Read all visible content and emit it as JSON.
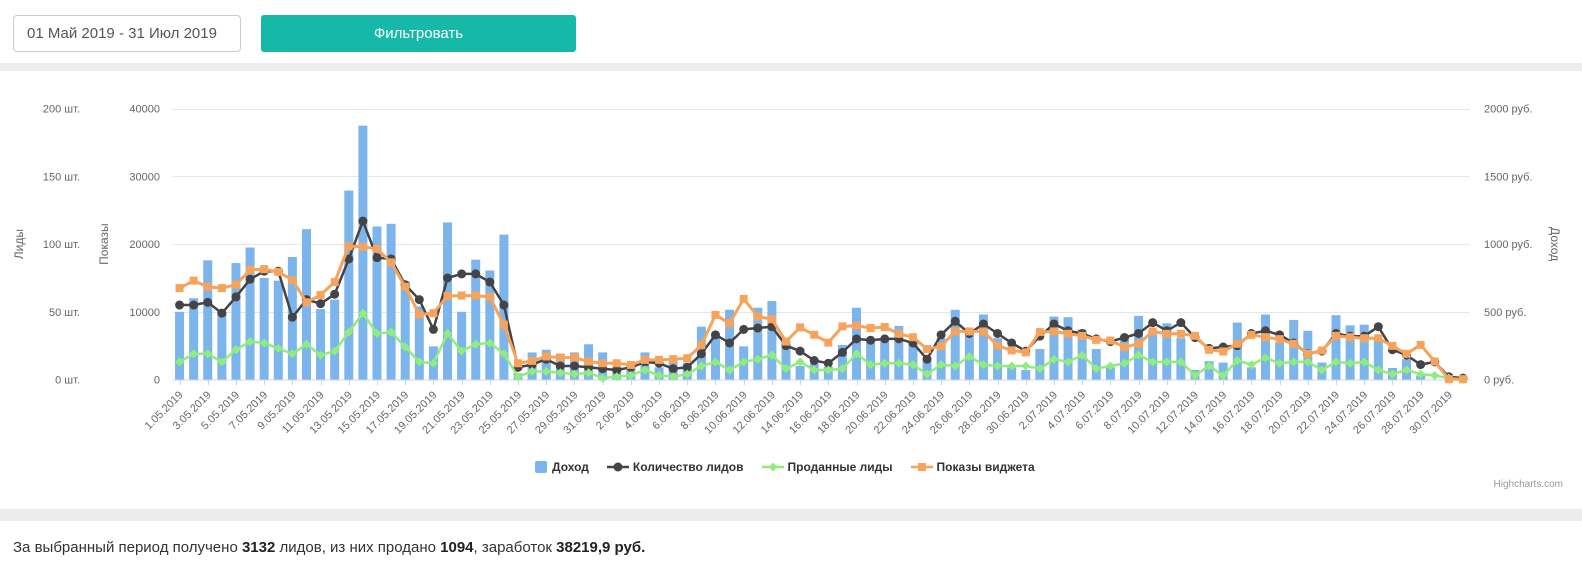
{
  "toolbar": {
    "date_range": "01 Май 2019 - 31 Июл 2019",
    "filter_button": "Фильтровать"
  },
  "chart_data": {
    "type": "mixed",
    "categories": [
      "1.05.2019",
      "2.05.2019",
      "3.05.2019",
      "4.05.2019",
      "5.05.2019",
      "6.05.2019",
      "7.05.2019",
      "8.05.2019",
      "9.05.2019",
      "10.05.2019",
      "11.05.2019",
      "12.05.2019",
      "13.05.2019",
      "14.05.2019",
      "15.05.2019",
      "16.05.2019",
      "17.05.2019",
      "18.05.2019",
      "19.05.2019",
      "20.05.2019",
      "21.05.2019",
      "22.05.2019",
      "23.05.2019",
      "24.05.2019",
      "25.05.2019",
      "26.05.2019",
      "27.05.2019",
      "28.05.2019",
      "29.05.2019",
      "30.05.2019",
      "31.05.2019",
      "1.06.2019",
      "2.06.2019",
      "3.06.2019",
      "4.06.2019",
      "5.06.2019",
      "6.06.2019",
      "7.06.2019",
      "8.06.2019",
      "9.06.2019",
      "10.06.2019",
      "11.06.2019",
      "12.06.2019",
      "13.06.2019",
      "14.06.2019",
      "15.06.2019",
      "16.06.2019",
      "17.06.2019",
      "18.06.2019",
      "19.06.2019",
      "20.06.2019",
      "21.06.2019",
      "22.06.2019",
      "23.06.2019",
      "24.06.2019",
      "25.06.2019",
      "26.06.2019",
      "27.06.2019",
      "28.06.2019",
      "29.06.2019",
      "30.06.2019",
      "1.07.2019",
      "2.07.2019",
      "3.07.2019",
      "4.07.2019",
      "5.07.2019",
      "6.07.2019",
      "7.07.2019",
      "8.07.2019",
      "9.07.2019",
      "10.07.2019",
      "11.07.2019",
      "12.07.2019",
      "13.07.2019",
      "14.07.2019",
      "15.07.2019",
      "16.07.2019",
      "17.07.2019",
      "18.07.2019",
      "19.07.2019",
      "20.07.2019",
      "21.07.2019",
      "22.07.2019",
      "23.07.2019",
      "24.07.2019",
      "25.07.2019",
      "26.07.2019",
      "27.07.2019",
      "28.07.2019",
      "29.07.2019",
      "30.07.2019",
      "31.07.2019"
    ],
    "axes": {
      "leads": {
        "title": "Лиды",
        "tick_labels": [
          "0 шт.",
          "50 шт.",
          "100 шт.",
          "150 шт.",
          "200 шт."
        ],
        "max": 200
      },
      "shows": {
        "title": "Показы",
        "tick_labels": [
          "0",
          "10000",
          "20000",
          "30000",
          "40000"
        ],
        "max": 40000
      },
      "income": {
        "title": "Доход",
        "tick_labels": [
          "0 руб.",
          "500 руб.",
          "1000 руб.",
          "1500 руб.",
          "2000 руб."
        ],
        "max": 2000
      }
    },
    "series": [
      {
        "name": "Доход",
        "type": "column",
        "marker": "square",
        "color": "#7cb5ec",
        "axis": "income",
        "values": [
          500,
          600,
          880,
          500,
          860,
          975,
          750,
          730,
          905,
          1110,
          520,
          590,
          1395,
          1875,
          1130,
          1150,
          725,
          540,
          245,
          1160,
          500,
          885,
          805,
          1070,
          45,
          200,
          220,
          190,
          200,
          260,
          200,
          95,
          85,
          200,
          90,
          135,
          125,
          390,
          315,
          515,
          245,
          530,
          580,
          285,
          100,
          120,
          95,
          255,
          530,
          300,
          300,
          395,
          265,
          135,
          305,
          515,
          325,
          480,
          305,
          90,
          70,
          225,
          465,
          460,
          370,
          225,
          90,
          315,
          470,
          365,
          415,
          305,
          70,
          135,
          125,
          420,
          90,
          480,
          270,
          440,
          360,
          125,
          475,
          400,
          405,
          300,
          85,
          150,
          30,
          0,
          0,
          0
        ]
      },
      {
        "name": "Количество лидов",
        "type": "line",
        "marker": "circle",
        "color": "#434348",
        "axis": "leads",
        "values": [
          55,
          55,
          57,
          49,
          61,
          74,
          80,
          80,
          46,
          59,
          56,
          63,
          89,
          117,
          90,
          89,
          70,
          59,
          37,
          75,
          78,
          78,
          72,
          55,
          9,
          11,
          15,
          10,
          10,
          9,
          8,
          7,
          9,
          13,
          12,
          8,
          9,
          19,
          33,
          27,
          37,
          38,
          39,
          25,
          21,
          14,
          12,
          20,
          30,
          29,
          30,
          30,
          27,
          15,
          33,
          43,
          34,
          41,
          34,
          27,
          21,
          32,
          41,
          36,
          34,
          30,
          28,
          31,
          34,
          42,
          36,
          42,
          31,
          23,
          24,
          25,
          34,
          36,
          33,
          27,
          19,
          21,
          34,
          32,
          32,
          39,
          22,
          18,
          11,
          13,
          2,
          1
        ]
      },
      {
        "name": "Проданные лиды",
        "type": "line",
        "marker": "diamond",
        "color": "#90ed7d",
        "axis": "leads",
        "values": [
          13,
          19,
          19,
          13,
          22,
          28,
          27,
          23,
          19,
          26,
          18,
          21,
          35,
          49,
          34,
          35,
          24,
          13,
          12,
          34,
          21,
          26,
          27,
          19,
          2,
          6,
          6,
          5,
          4,
          5,
          1,
          2,
          3,
          7,
          3,
          2,
          4,
          10,
          13,
          7,
          13,
          15,
          18,
          8,
          13,
          7,
          7,
          8,
          19,
          11,
          12,
          12,
          11,
          4,
          11,
          10,
          17,
          11,
          10,
          10,
          10,
          8,
          15,
          13,
          18,
          8,
          10,
          12,
          18,
          13,
          13,
          13,
          3,
          10,
          3,
          14,
          11,
          16,
          12,
          13,
          13,
          7,
          13,
          12,
          13,
          7,
          4,
          7,
          4,
          3,
          1,
          0
        ]
      },
      {
        "name": "Показы виджета",
        "type": "line",
        "marker": "square",
        "color": "#f7a35c",
        "axis": "shows",
        "values": [
          13500,
          14600,
          13700,
          13500,
          14000,
          16200,
          16300,
          15900,
          14700,
          11400,
          12500,
          14400,
          19700,
          19600,
          19300,
          17300,
          13700,
          9600,
          9800,
          12350,
          12400,
          12400,
          12200,
          8100,
          2400,
          2750,
          3400,
          3250,
          3250,
          2650,
          2400,
          2400,
          2150,
          2900,
          2900,
          3000,
          3150,
          5100,
          9550,
          8300,
          11900,
          9300,
          8900,
          5600,
          7700,
          6600,
          5450,
          7850,
          7950,
          7600,
          7750,
          6750,
          6250,
          4500,
          4900,
          7100,
          7100,
          7100,
          5000,
          4300,
          4000,
          7000,
          7100,
          6750,
          6450,
          5860,
          5760,
          4780,
          5270,
          7090,
          6745,
          6745,
          6450,
          4380,
          4140,
          5270,
          6600,
          6250,
          5960,
          5270,
          3790,
          4280,
          6450,
          6250,
          6105,
          6105,
          4970,
          3790,
          5120,
          2660,
          50,
          50
        ]
      }
    ]
  },
  "credits": "Highcharts.com",
  "summary": {
    "prefix": "За выбранный период получено ",
    "leads_total": "3132",
    "middle1": " лидов, из них продано ",
    "sold_total": "1094",
    "middle2": ", заработок ",
    "revenue_total": "38219,9 руб."
  }
}
